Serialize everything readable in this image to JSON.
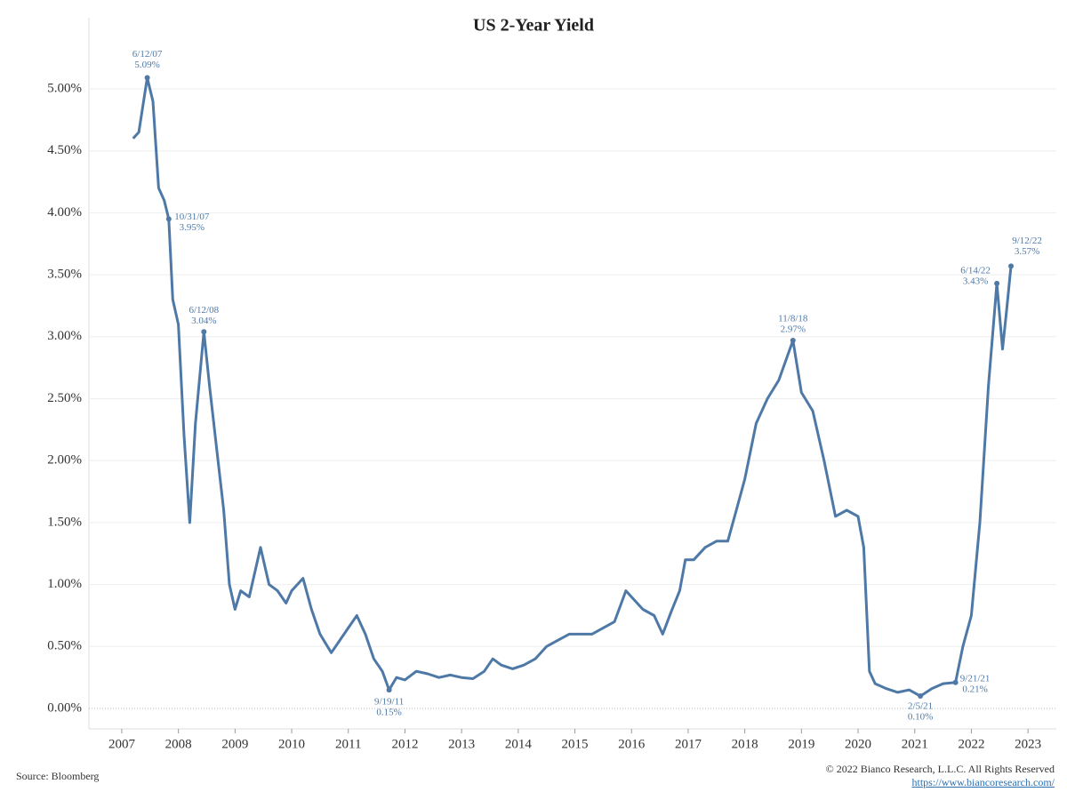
{
  "chart_data": {
    "type": "line",
    "title": "US 2-Year Yield",
    "x": [
      2007.2,
      2007.3,
      2007.45,
      2007.55,
      2007.65,
      2007.75,
      2007.83,
      2007.9,
      2008.0,
      2008.1,
      2008.2,
      2008.3,
      2008.45,
      2008.55,
      2008.7,
      2008.8,
      2008.9,
      2009.0,
      2009.1,
      2009.25,
      2009.45,
      2009.6,
      2009.75,
      2009.9,
      2010.0,
      2010.2,
      2010.35,
      2010.5,
      2010.7,
      2010.85,
      2011.0,
      2011.15,
      2011.3,
      2011.45,
      2011.6,
      2011.72,
      2011.85,
      2012.0,
      2012.2,
      2012.4,
      2012.6,
      2012.8,
      2013.0,
      2013.2,
      2013.4,
      2013.55,
      2013.7,
      2013.9,
      2014.1,
      2014.3,
      2014.5,
      2014.7,
      2014.9,
      2015.1,
      2015.3,
      2015.5,
      2015.7,
      2015.9,
      2016.0,
      2016.2,
      2016.4,
      2016.55,
      2016.7,
      2016.85,
      2016.95,
      2017.1,
      2017.3,
      2017.5,
      2017.7,
      2017.85,
      2018.0,
      2018.2,
      2018.4,
      2018.6,
      2018.85,
      2019.0,
      2019.2,
      2019.4,
      2019.6,
      2019.8,
      2020.0,
      2020.1,
      2020.2,
      2020.3,
      2020.5,
      2020.7,
      2020.9,
      2021.1,
      2021.3,
      2021.5,
      2021.72,
      2021.85,
      2022.0,
      2022.15,
      2022.3,
      2022.45,
      2022.55,
      2022.62,
      2022.7
    ],
    "values": [
      4.6,
      4.65,
      5.09,
      4.9,
      4.2,
      4.1,
      3.95,
      3.3,
      3.1,
      2.2,
      1.5,
      2.3,
      3.04,
      2.6,
      2.0,
      1.6,
      1.0,
      0.8,
      0.95,
      0.9,
      1.3,
      1.0,
      0.95,
      0.85,
      0.95,
      1.05,
      0.8,
      0.6,
      0.45,
      0.55,
      0.65,
      0.75,
      0.6,
      0.4,
      0.3,
      0.15,
      0.25,
      0.23,
      0.3,
      0.28,
      0.25,
      0.27,
      0.25,
      0.24,
      0.3,
      0.4,
      0.35,
      0.32,
      0.35,
      0.4,
      0.5,
      0.55,
      0.6,
      0.6,
      0.6,
      0.65,
      0.7,
      0.95,
      0.9,
      0.8,
      0.75,
      0.6,
      0.78,
      0.95,
      1.2,
      1.2,
      1.3,
      1.35,
      1.35,
      1.6,
      1.85,
      2.3,
      2.5,
      2.65,
      2.97,
      2.55,
      2.4,
      2.0,
      1.55,
      1.6,
      1.55,
      1.3,
      0.3,
      0.2,
      0.16,
      0.13,
      0.15,
      0.1,
      0.16,
      0.2,
      0.21,
      0.5,
      0.75,
      1.5,
      2.6,
      3.43,
      2.9,
      3.2,
      3.57
    ],
    "color": "#4e79a7",
    "xlim": [
      2006.42,
      2023.5
    ],
    "xticks": [
      2007,
      2008,
      2009,
      2010,
      2011,
      2012,
      2013,
      2014,
      2015,
      2016,
      2017,
      2018,
      2019,
      2020,
      2021,
      2022,
      2023
    ],
    "ylim": [
      -0.165,
      5.574
    ],
    "yticks": [
      {
        "value": 0,
        "label": "0.00%"
      },
      {
        "value": 0.5,
        "label": "0.50%"
      },
      {
        "value": 1,
        "label": "1.00%"
      },
      {
        "value": 1.5,
        "label": "1.50%"
      },
      {
        "value": 2,
        "label": "2.00%"
      },
      {
        "value": 2.5,
        "label": "2.50%"
      },
      {
        "value": 3,
        "label": "3.00%"
      },
      {
        "value": 3.5,
        "label": "3.50%"
      },
      {
        "value": 4,
        "label": "4.00%"
      },
      {
        "value": 4.5,
        "label": "4.50%"
      },
      {
        "value": 5,
        "label": "5.00%"
      }
    ],
    "grid": true,
    "annotations": [
      {
        "x": 2007.45,
        "y": 5.09,
        "date": "6/12/07",
        "label": "5.09%"
      },
      {
        "x": 2007.83,
        "y": 3.95,
        "date": "10/31/07",
        "label": "3.95%"
      },
      {
        "x": 2008.45,
        "y": 3.04,
        "date": "6/12/08",
        "label": "3.04%"
      },
      {
        "x": 2011.72,
        "y": 0.15,
        "date": "9/19/11",
        "label": "0.15%"
      },
      {
        "x": 2018.85,
        "y": 2.97,
        "date": "11/8/18",
        "label": "2.97%"
      },
      {
        "x": 2021.1,
        "y": 0.1,
        "date": "2/5/21",
        "label": "0.10%"
      },
      {
        "x": 2021.72,
        "y": 0.21,
        "date": "9/21/21",
        "label": "0.21%"
      },
      {
        "x": 2022.45,
        "y": 3.43,
        "date": "6/14/22",
        "label": "3.43%"
      },
      {
        "x": 2022.7,
        "y": 3.57,
        "date": "9/12/22",
        "label": "3.57%"
      }
    ]
  },
  "footer": {
    "source": "Source: Bloomberg",
    "copyright": "© 2022 Bianco Research, L.L.C. All Rights Reserved",
    "url": "https://www.biancoresearch.com/"
  }
}
